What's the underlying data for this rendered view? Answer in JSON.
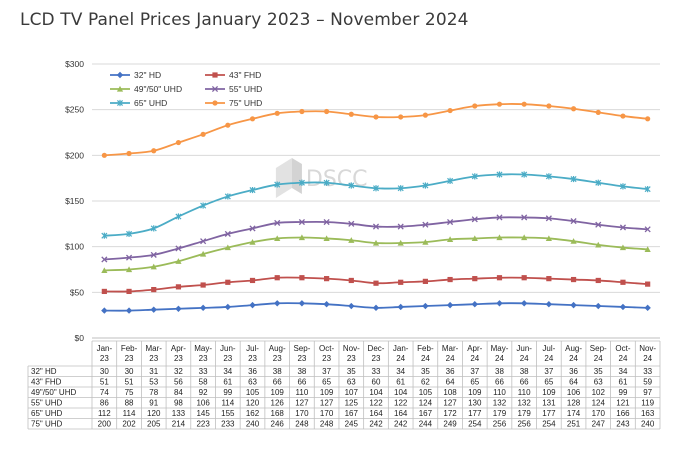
{
  "chart_data": {
    "type": "line",
    "title": "LCD TV Panel Prices January 2023 – November 2024",
    "watermark": "DSCC",
    "y_ticks": [
      "$0",
      "$50",
      "$100",
      "$150",
      "$200",
      "$250",
      "$300"
    ],
    "ylim": [
      0,
      300
    ],
    "grid": true,
    "legend_position": "top-left",
    "categories": [
      [
        "Jan-",
        "23"
      ],
      [
        "Feb-",
        "23"
      ],
      [
        "Mar-",
        "23"
      ],
      [
        "Apr-",
        "23"
      ],
      [
        "May-",
        "23"
      ],
      [
        "Jun-",
        "23"
      ],
      [
        "Jul-",
        "23"
      ],
      [
        "Aug-",
        "23"
      ],
      [
        "Sep-",
        "23"
      ],
      [
        "Oct-",
        "23"
      ],
      [
        "Nov-",
        "23"
      ],
      [
        "Dec-",
        "23"
      ],
      [
        "Jan-",
        "24"
      ],
      [
        "Feb-",
        "24"
      ],
      [
        "Mar-",
        "24"
      ],
      [
        "Apr-",
        "24"
      ],
      [
        "May-",
        "24"
      ],
      [
        "Jun-",
        "24"
      ],
      [
        "Jul-",
        "24"
      ],
      [
        "Aug-",
        "24"
      ],
      [
        "Sep-",
        "24"
      ],
      [
        "Oct-",
        "24"
      ],
      [
        "Nov-",
        "24"
      ]
    ],
    "series": [
      {
        "name": "32\" HD",
        "table_label": "32\" HD",
        "color": "#4472c4",
        "marker": "diamond",
        "values": [
          30,
          30,
          31,
          32,
          33,
          34,
          36,
          38,
          38,
          37,
          35,
          33,
          34,
          35,
          36,
          37,
          38,
          38,
          37,
          36,
          35,
          34,
          33
        ]
      },
      {
        "name": "43\" FHD",
        "table_label": "43\" FHD",
        "color": "#c0504d",
        "marker": "square",
        "values": [
          51,
          51,
          53,
          56,
          58,
          61,
          63,
          66,
          66,
          65,
          63,
          60,
          61,
          62,
          64,
          65,
          66,
          66,
          65,
          64,
          63,
          61,
          59
        ]
      },
      {
        "name": "49\"/50\" UHD",
        "table_label": "49\"/50\" UHD",
        "color": "#9bbb59",
        "marker": "triangle",
        "values": [
          74,
          75,
          78,
          84,
          92,
          99,
          105,
          109,
          110,
          109,
          107,
          104,
          104,
          105,
          108,
          109,
          110,
          110,
          109,
          106,
          102,
          99,
          97
        ]
      },
      {
        "name": "55\" UHD",
        "table_label": "55\" UHD",
        "color": "#8064a2",
        "marker": "x",
        "values": [
          86,
          88,
          91,
          98,
          106,
          114,
          120,
          126,
          127,
          127,
          125,
          122,
          122,
          124,
          127,
          130,
          132,
          132,
          131,
          128,
          124,
          121,
          119
        ]
      },
      {
        "name": "65\" UHD",
        "table_label": "65\" UHD",
        "color": "#4bacc6",
        "marker": "star",
        "values": [
          112,
          114,
          120,
          133,
          145,
          155,
          162,
          168,
          170,
          170,
          167,
          164,
          164,
          167,
          172,
          177,
          179,
          179,
          177,
          174,
          170,
          166,
          163
        ]
      },
      {
        "name": "75\" UHD",
        "table_label": "75\" UHD",
        "color": "#f79646",
        "marker": "circle",
        "values": [
          200,
          202,
          205,
          214,
          223,
          233,
          240,
          246,
          248,
          248,
          245,
          242,
          242,
          244,
          249,
          254,
          256,
          256,
          254,
          251,
          247,
          243,
          240
        ]
      }
    ]
  }
}
